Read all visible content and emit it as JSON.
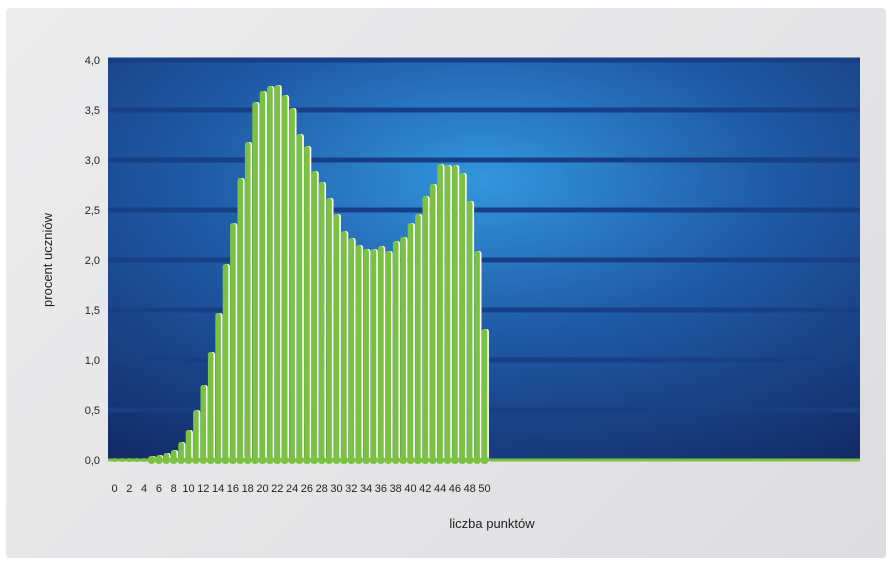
{
  "chart_data": {
    "type": "bar",
    "xlabel": "liczba punktów",
    "ylabel": "procent uczniów",
    "x": [
      0,
      1,
      2,
      3,
      4,
      5,
      6,
      7,
      8,
      9,
      10,
      11,
      12,
      13,
      14,
      15,
      16,
      17,
      18,
      19,
      20,
      21,
      22,
      23,
      24,
      25,
      26,
      27,
      28,
      29,
      30,
      31,
      32,
      33,
      34,
      35,
      36,
      37,
      38,
      39,
      40,
      41,
      42,
      43,
      44,
      45,
      46,
      47,
      48,
      49,
      50
    ],
    "values": [
      0.0,
      0.0,
      0.0,
      0.0,
      0.0,
      0.04,
      0.05,
      0.07,
      0.1,
      0.18,
      0.3,
      0.5,
      0.75,
      1.08,
      1.47,
      1.96,
      2.37,
      2.82,
      3.18,
      3.58,
      3.69,
      3.74,
      3.75,
      3.65,
      3.52,
      3.26,
      3.14,
      2.89,
      2.78,
      2.62,
      2.46,
      2.29,
      2.22,
      2.15,
      2.11,
      2.11,
      2.14,
      2.09,
      2.19,
      2.23,
      2.37,
      2.46,
      2.64,
      2.76,
      2.96,
      2.95,
      2.95,
      2.87,
      2.59,
      2.09,
      1.31
    ],
    "ylim": [
      0,
      4
    ],
    "xlim": [
      0,
      50
    ],
    "x_ticks": [
      "0",
      "2",
      "4",
      "6",
      "8",
      "10",
      "12",
      "14",
      "16",
      "18",
      "20",
      "22",
      "24",
      "26",
      "28",
      "30",
      "32",
      "34",
      "36",
      "38",
      "40",
      "42",
      "44",
      "46",
      "48",
      "50"
    ],
    "y_ticks": [
      "0,0",
      "0,5",
      "1,0",
      "1,5",
      "2,0",
      "2,5",
      "3,0",
      "3,5",
      "4,0"
    ],
    "y_tick_values": [
      0,
      0.5,
      1,
      1.5,
      2,
      2.5,
      3,
      3.5,
      4
    ],
    "grid": true,
    "colors": {
      "bar": "#7cc242",
      "bar_edge": "#ffffff",
      "plot_background_center": "#2f8ed6",
      "plot_background_edge": "#122863",
      "gridline": "#173f86"
    }
  }
}
